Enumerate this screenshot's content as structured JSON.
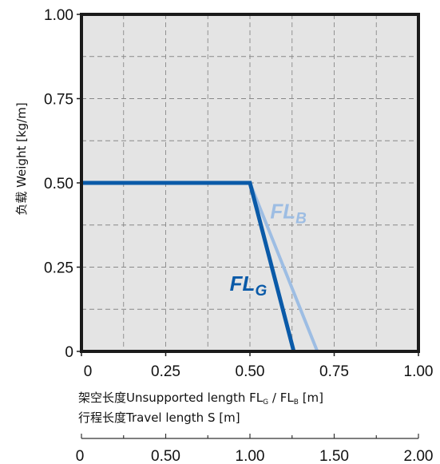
{
  "chart_data": {
    "type": "line",
    "ylabel": "负载 Weight  [kg/m]",
    "xlabel_top": {
      "prefix": "架空长度Unsupported length FL",
      "sub1": "G",
      "mid": " / FL",
      "sub2": "B",
      "suffix": " [m]"
    },
    "xlabel_bottom": "行程长度Travel length S [m]",
    "xlim": [
      0,
      1.0
    ],
    "ylim": [
      0,
      1.0
    ],
    "x_ticks": [
      0,
      0.25,
      0.5,
      0.75,
      1.0
    ],
    "x_tick_labels": [
      "0",
      "0.25",
      "0.50",
      "0.75",
      "1.00"
    ],
    "y_ticks": [
      0,
      0.25,
      0.5,
      0.75,
      1.0
    ],
    "y_tick_labels": [
      "0",
      "0.25",
      "0.50",
      "0.75",
      "1.00"
    ],
    "travel_ticks": [
      0,
      0.5,
      1.0,
      1.5,
      2.0
    ],
    "travel_tick_labels": [
      "0",
      "0.50",
      "1.00",
      "1.50",
      "2.00"
    ],
    "travel_lim": [
      0,
      2.0
    ],
    "grid": true,
    "grid_minor_step": 0.125,
    "series": [
      {
        "label_main": "FL",
        "label_sub": "B",
        "color": "#9dbde3",
        "x": [
          0,
          0.5,
          0.7
        ],
        "y": [
          0.5,
          0.5,
          0
        ],
        "label_at": [
          0.56,
          0.395
        ]
      },
      {
        "label_main": "FL",
        "label_sub": "G",
        "color": "#0a5aa8",
        "x": [
          0,
          0.5,
          0.63
        ],
        "y": [
          0.5,
          0.5,
          0
        ],
        "label_at": [
          0.44,
          0.18
        ]
      }
    ],
    "colors": {
      "plot_bg": "#e4e4e4",
      "frame": "#1a1a1a",
      "grid": "#888888"
    }
  }
}
